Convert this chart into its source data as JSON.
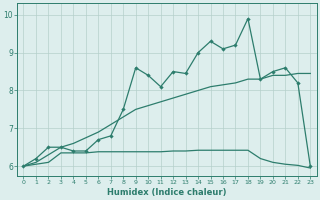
{
  "xlabel": "Humidex (Indice chaleur)",
  "x": [
    0,
    1,
    2,
    3,
    4,
    5,
    6,
    7,
    8,
    9,
    10,
    11,
    12,
    13,
    14,
    15,
    16,
    17,
    18,
    19,
    20,
    21,
    22,
    23
  ],
  "y_top": [
    6.0,
    6.2,
    6.5,
    6.5,
    6.4,
    6.4,
    6.7,
    6.8,
    7.5,
    8.6,
    8.4,
    8.1,
    8.5,
    8.45,
    9.0,
    9.3,
    9.1,
    9.2,
    9.9,
    8.3,
    8.5,
    8.6,
    8.2,
    6.0
  ],
  "y_mid": [
    6.0,
    6.1,
    6.3,
    6.5,
    6.6,
    6.75,
    6.9,
    7.1,
    7.3,
    7.5,
    7.6,
    7.7,
    7.8,
    7.9,
    8.0,
    8.1,
    8.15,
    8.2,
    8.3,
    8.3,
    8.4,
    8.4,
    8.45,
    8.45
  ],
  "y_bot": [
    6.0,
    6.05,
    6.1,
    6.35,
    6.35,
    6.35,
    6.38,
    6.38,
    6.38,
    6.38,
    6.38,
    6.38,
    6.4,
    6.4,
    6.42,
    6.42,
    6.42,
    6.42,
    6.42,
    6.2,
    6.1,
    6.05,
    6.02,
    5.95
  ],
  "color": "#2d7d6d",
  "bg_color": "#ddeeed",
  "grid_color": "#b5d0cb",
  "ylim": [
    5.75,
    10.3
  ],
  "xlim": [
    -0.5,
    23.5
  ]
}
